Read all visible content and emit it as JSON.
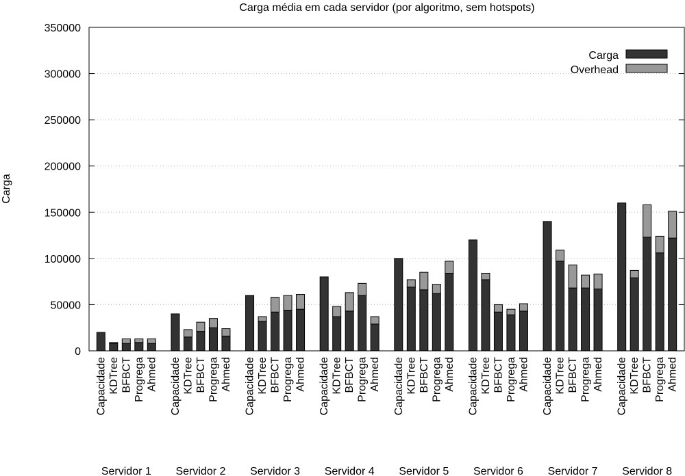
{
  "chart_data": {
    "type": "bar",
    "stacked": true,
    "title": "Carga média em cada servidor (por algoritmo, sem hotspots)",
    "xlabel": "",
    "ylabel": "Carga",
    "ylim": [
      0,
      350000
    ],
    "yticks": [
      "0",
      "50000",
      "100000",
      "150000",
      "200000",
      "250000",
      "300000",
      "350000"
    ],
    "grid": "horizontal dotted",
    "legend_position": "top-right",
    "group_labels": [
      "Servidor 1",
      "Servidor 2",
      "Servidor 3",
      "Servidor 4",
      "Servidor 5",
      "Servidor 6",
      "Servidor 7",
      "Servidor 8"
    ],
    "categories": [
      "Capacidade",
      "KDTree",
      "BFBCT",
      "Progrega",
      "Ahmed"
    ],
    "series": [
      {
        "name": "Carga",
        "color": "#333333",
        "values": [
          [
            20000,
            8000,
            8000,
            9000,
            8000
          ],
          [
            40000,
            15000,
            21000,
            25000,
            16000
          ],
          [
            60000,
            32000,
            42000,
            44000,
            45000
          ],
          [
            80000,
            37000,
            43000,
            60000,
            29000
          ],
          [
            100000,
            69000,
            66000,
            62000,
            84000
          ],
          [
            120000,
            77000,
            42000,
            39000,
            43000
          ],
          [
            140000,
            97000,
            68000,
            68000,
            67000
          ],
          [
            160000,
            79000,
            123000,
            106000,
            122000
          ]
        ]
      },
      {
        "name": "Overhead",
        "color": "#999999",
        "values": [
          [
            0,
            1000,
            5000,
            4000,
            5000
          ],
          [
            0,
            8000,
            10000,
            10000,
            8000
          ],
          [
            0,
            5000,
            16000,
            16000,
            16000
          ],
          [
            0,
            11000,
            20000,
            13000,
            8000
          ],
          [
            0,
            8000,
            19000,
            10000,
            13000
          ],
          [
            0,
            7000,
            8000,
            6000,
            8000
          ],
          [
            0,
            12000,
            25000,
            14000,
            16000
          ],
          [
            0,
            8000,
            35000,
            18000,
            29000
          ]
        ]
      }
    ]
  }
}
